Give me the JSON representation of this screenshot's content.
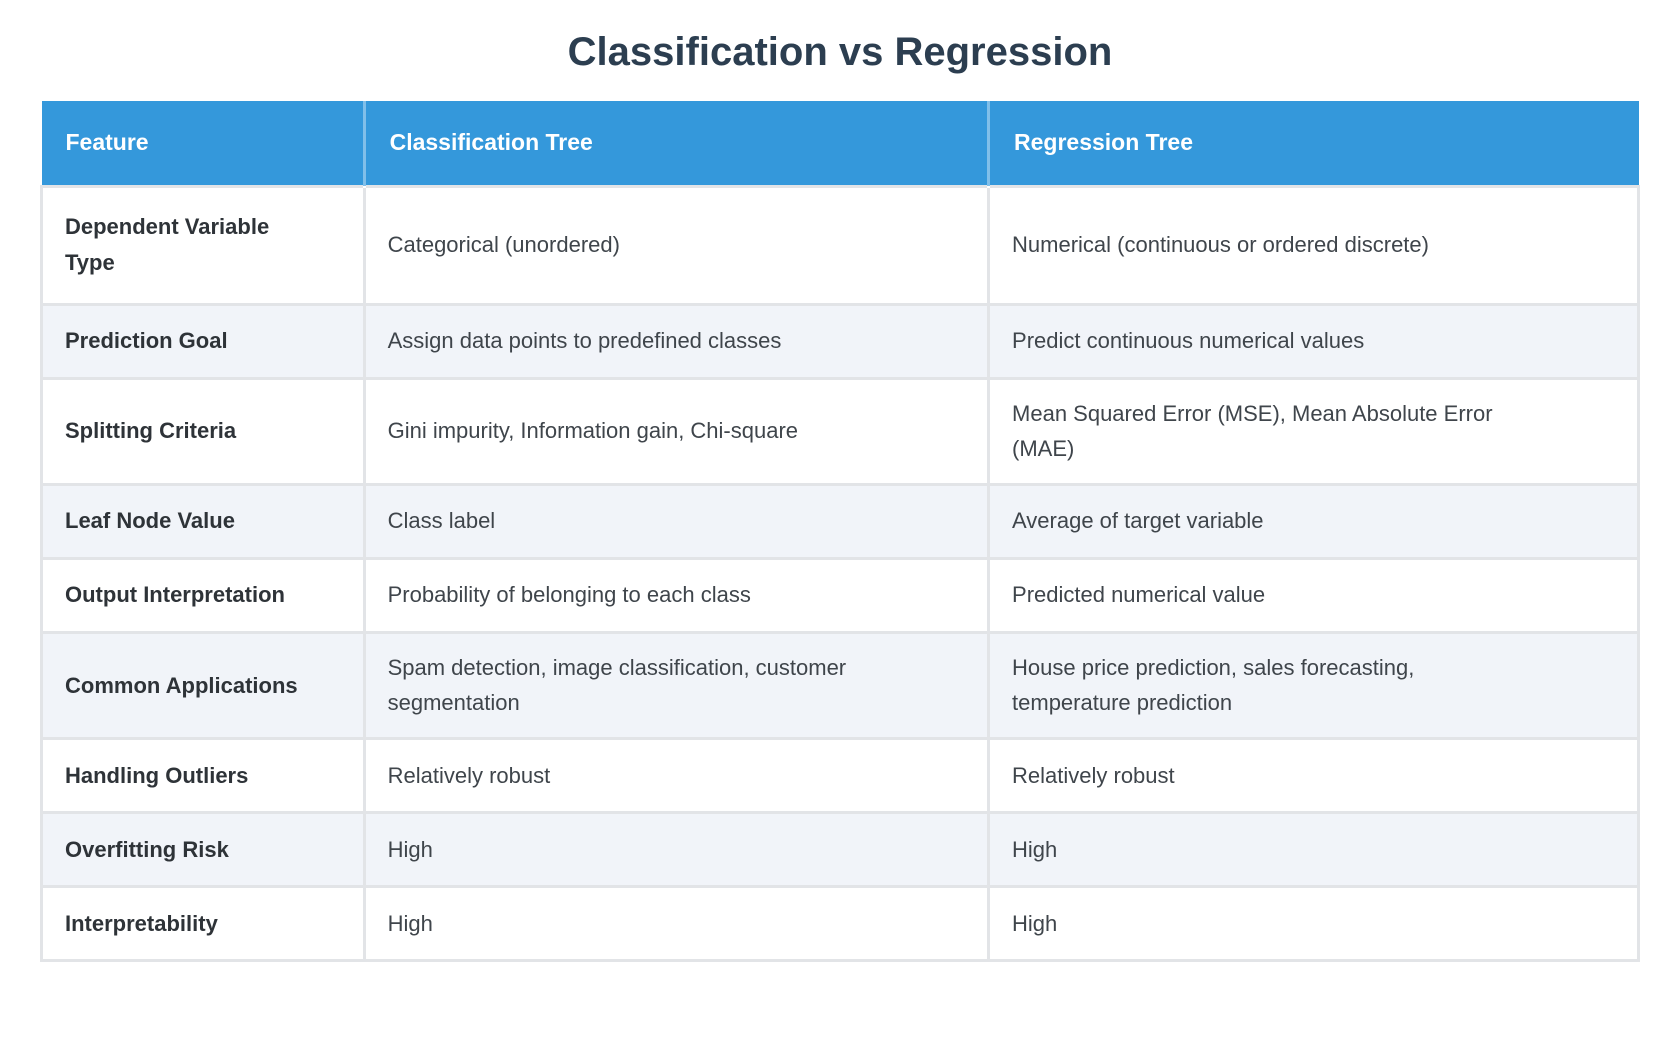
{
  "page": {
    "title": "Classification vs Regression"
  },
  "colors": {
    "header_bg": "#3498db",
    "header_text": "#ffffff",
    "title_text": "#2c3e50",
    "stripe_row_bg": "#f1f4f9",
    "border": "#e2e4e7",
    "body_text": "#3f454b",
    "label_text": "#2e3338"
  },
  "table": {
    "columns": [
      {
        "label": "Feature"
      },
      {
        "label": "Classification Tree"
      },
      {
        "label": "Regression Tree"
      }
    ],
    "rows": [
      {
        "feature": "Dependent Variable\nType",
        "classification": "Categorical (unordered)",
        "regression": "Numerical (continuous or ordered discrete)"
      },
      {
        "feature": "Prediction Goal",
        "classification": "Assign data points to predefined classes",
        "regression": "Predict continuous numerical values"
      },
      {
        "feature": "Splitting Criteria",
        "classification": "Gini impurity, Information gain, Chi-square",
        "regression": "Mean Squared Error (MSE), Mean Absolute Error\n(MAE)"
      },
      {
        "feature": "Leaf Node Value",
        "classification": "Class label",
        "regression": "Average of target variable"
      },
      {
        "feature": "Output Interpretation",
        "classification": "Probability of belonging to each class",
        "regression": "Predicted numerical value"
      },
      {
        "feature": "Common Applications",
        "classification": "Spam detection, image classification, customer\nsegmentation",
        "regression": "House price prediction, sales forecasting,\ntemperature prediction"
      },
      {
        "feature": "Handling Outliers",
        "classification": "Relatively robust",
        "regression": "Relatively robust"
      },
      {
        "feature": "Overfitting Risk",
        "classification": "High",
        "regression": "High"
      },
      {
        "feature": "Interpretability",
        "classification": "High",
        "regression": "High"
      }
    ]
  }
}
